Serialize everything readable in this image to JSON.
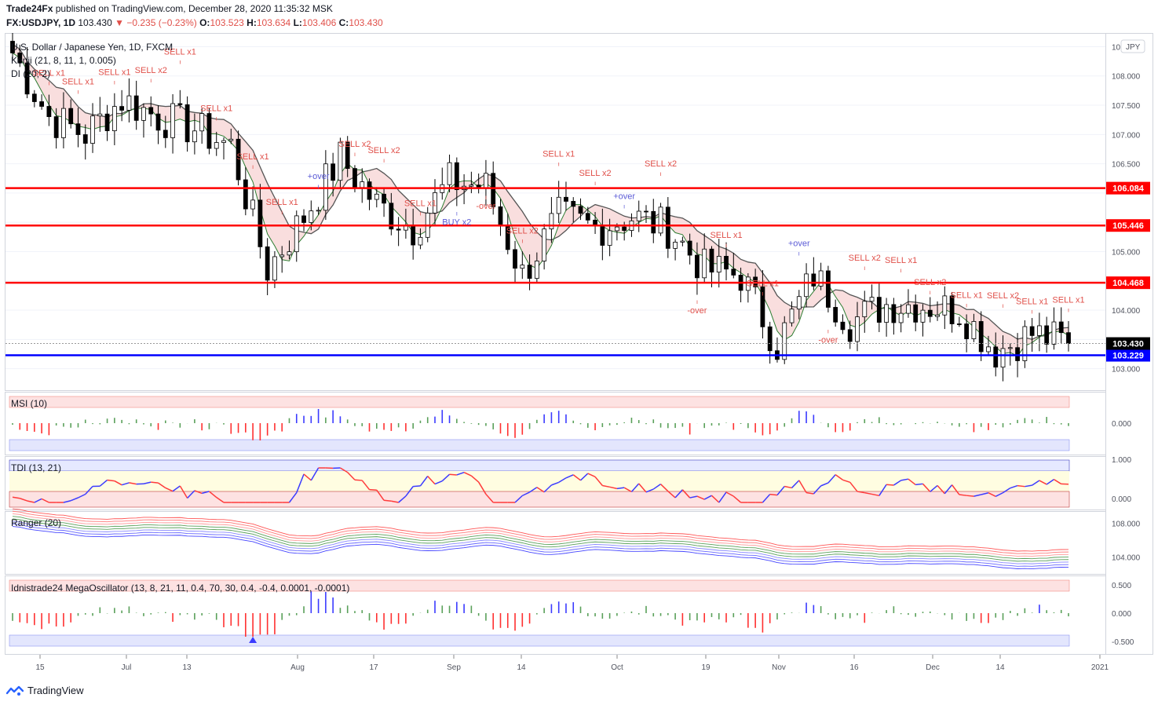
{
  "header": {
    "publisher": "Trade24Fx",
    "published_text": "published on TradingView.com, December 28, 2020 11:35:32 MSK",
    "symbol": "FX:USDJPY, 1D",
    "last": "103.430",
    "change": "−0.235 (−0.23%)",
    "open_label": "O:",
    "open": "103.523",
    "high_label": "H:",
    "high": "103.634",
    "low_label": "L:",
    "low": "103.406",
    "close_label": "C:",
    "close": "103.430"
  },
  "main_pane": {
    "title": "U.S. Dollar / Japanese Yen, 1D, FXCM",
    "study1": "Kenji (21, 8, 11, 1, 0.005)",
    "study2": "DI (20, 2)",
    "currency": "JPY",
    "price_ticks": [
      "108.500",
      "108.000",
      "107.500",
      "107.000",
      "106.500",
      "106.000",
      "105.500",
      "105.000",
      "104.500",
      "104.000",
      "103.500",
      "103.000"
    ],
    "levels": [
      {
        "value": 106.084,
        "label": "106.084",
        "color": "#ff0000"
      },
      {
        "value": 105.446,
        "label": "105.446",
        "color": "#ff0000"
      },
      {
        "value": 104.468,
        "label": "104.468",
        "color": "#ff0000"
      },
      {
        "value": 103.229,
        "label": "103.229",
        "color": "#0000ff"
      }
    ],
    "last_price_label": "103.430",
    "signals": [
      "SELL x2",
      "SELL x1",
      "SELL x1",
      "SELL x1",
      "SELL x2",
      "SELL x1",
      "SELL x1",
      "SELL x1",
      "SELL x1",
      "+over",
      "SELL x2",
      "SELL x2",
      "SELL x1",
      "BUY x2",
      "-over",
      "SELL x2",
      "SELL x1",
      "SELL x2",
      "+over",
      "SELL x2",
      "-over",
      "SELL x1",
      "SELL x1",
      "+over",
      "-over",
      "SELL x2",
      "SELL x1",
      "SELL x2",
      "SELL x1",
      "SELL x2",
      "SELL x1",
      "SELL x1"
    ]
  },
  "msi_pane": {
    "title": "MSI (10)",
    "ticks": [
      "0.000"
    ]
  },
  "tdi_pane": {
    "title": "TDI (13, 21)",
    "ticks": [
      "1.000",
      "0.000"
    ]
  },
  "ranger_pane": {
    "title": "Ranger (20)",
    "ticks": [
      "108.000",
      "104.000"
    ]
  },
  "mega_pane": {
    "title": "Idnistrade24 MegaOscillator (13, 8, 21, 11, 0.4, 70, 30, 0.4, -0.4, 0.0001, -0.0001)",
    "ticks": [
      "0.500",
      "0.000",
      "-0.500"
    ]
  },
  "time_axis": [
    "15",
    "Jul",
    "13",
    "Aug",
    "17",
    "Sep",
    "14",
    "Oct",
    "19",
    "Nov",
    "16",
    "Dec",
    "14",
    "2021"
  ],
  "footer": {
    "brand": "TradingView"
  },
  "colors": {
    "up": "#ffffff",
    "down": "#000000",
    "sell": "#e0504a",
    "buy": "#5b5bd6",
    "level_red": "#ff0000",
    "level_blue": "#0000ff",
    "kenji_fill": "#f7d6d6",
    "kenji_green": "#2e7d32"
  },
  "chart_data": {
    "type": "candlestick",
    "title": "U.S. Dollar / Japanese Yen, 1D, FXCM",
    "ylim": [
      102.7,
      108.6
    ],
    "x_range": [
      "2020-06-08",
      "2020-12-28"
    ],
    "close_series_approx": [
      {
        "date": "2020-06-08",
        "close": 108.4
      },
      {
        "date": "2020-06-15",
        "close": 107.3
      },
      {
        "date": "2020-06-22",
        "close": 107.0
      },
      {
        "date": "2020-06-29",
        "close": 107.6
      },
      {
        "date": "2020-07-06",
        "close": 107.3
      },
      {
        "date": "2020-07-13",
        "close": 107.1
      },
      {
        "date": "2020-07-20",
        "close": 106.8
      },
      {
        "date": "2020-07-27",
        "close": 104.7
      },
      {
        "date": "2020-08-03",
        "close": 105.6
      },
      {
        "date": "2020-08-10",
        "close": 106.6
      },
      {
        "date": "2020-08-17",
        "close": 105.8
      },
      {
        "date": "2020-08-24",
        "close": 105.4
      },
      {
        "date": "2020-08-31",
        "close": 106.2
      },
      {
        "date": "2020-09-07",
        "close": 106.1
      },
      {
        "date": "2020-09-14",
        "close": 104.6
      },
      {
        "date": "2020-09-21",
        "close": 105.6
      },
      {
        "date": "2020-09-28",
        "close": 105.4
      },
      {
        "date": "2020-10-05",
        "close": 105.6
      },
      {
        "date": "2020-10-12",
        "close": 105.4
      },
      {
        "date": "2020-10-19",
        "close": 104.7
      },
      {
        "date": "2020-10-26",
        "close": 104.6
      },
      {
        "date": "2020-11-02",
        "close": 103.4
      },
      {
        "date": "2020-11-09",
        "close": 104.6
      },
      {
        "date": "2020-11-16",
        "close": 103.8
      },
      {
        "date": "2020-11-23",
        "close": 104.1
      },
      {
        "date": "2020-11-30",
        "close": 104.1
      },
      {
        "date": "2020-12-07",
        "close": 104.0
      },
      {
        "date": "2020-12-14",
        "close": 103.3
      },
      {
        "date": "2020-12-21",
        "close": 103.6
      },
      {
        "date": "2020-12-28",
        "close": 103.43
      }
    ],
    "horizontal_levels": [
      106.084,
      105.446,
      104.468,
      103.229
    ],
    "last_price": 103.43
  }
}
